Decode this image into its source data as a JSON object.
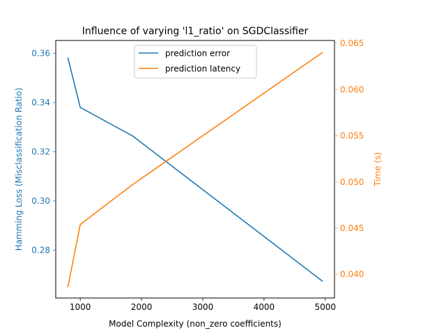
{
  "chart_data": {
    "type": "line",
    "title": "Influence of varying 'l1_ratio' on SGDClassifier",
    "xlabel": "Model Complexity (non_zero coefficients)",
    "ylabel_left": "Hamming Loss (Misclassification Ratio)",
    "ylabel_right": "Time (s)",
    "xlim": [
      600,
      5150
    ],
    "ylim_left": [
      0.2606,
      0.3652
    ],
    "ylim_right": [
      0.03745,
      0.06531
    ],
    "xticks": [
      1000,
      2000,
      3000,
      4000,
      5000
    ],
    "xtick_labels": [
      "1000",
      "2000",
      "3000",
      "4000",
      "5000"
    ],
    "yticks_left": [
      0.28,
      0.3,
      0.32,
      0.34,
      0.36
    ],
    "ytick_labels_left": [
      "0.28",
      "0.30",
      "0.32",
      "0.34",
      "0.36"
    ],
    "yticks_right": [
      0.04,
      0.045,
      0.05,
      0.055,
      0.06,
      0.065
    ],
    "ytick_labels_right": [
      "0.040",
      "0.045",
      "0.050",
      "0.055",
      "0.060",
      "0.065"
    ],
    "grid": false,
    "legend": "top-center",
    "series": [
      {
        "name": "prediction error",
        "axis": "left",
        "color": "#1f77b4",
        "x": [
          800,
          1000,
          1850,
          4950
        ],
        "y": [
          0.358,
          0.338,
          0.3265,
          0.2675
        ]
      },
      {
        "name": "prediction latency",
        "axis": "right",
        "color": "#ff7f0e",
        "x": [
          800,
          1000,
          1850,
          4950
        ],
        "y": [
          0.0387,
          0.0454,
          0.0497,
          0.064
        ]
      }
    ]
  }
}
